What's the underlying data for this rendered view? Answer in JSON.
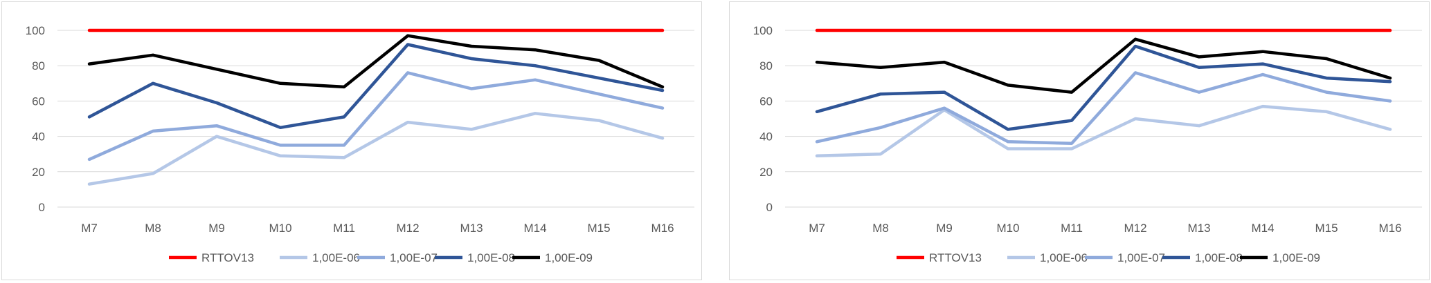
{
  "chart_data": [
    {
      "type": "line",
      "categories": [
        "M7",
        "M8",
        "M9",
        "M10",
        "M11",
        "M12",
        "M13",
        "M14",
        "M15",
        "M16"
      ],
      "ylim": [
        0,
        100
      ],
      "yticks": [
        0,
        20,
        40,
        60,
        80,
        100
      ],
      "grid": true,
      "legend_position": "bottom",
      "series": [
        {
          "name": "RTTOV13",
          "color": "#ff0000",
          "values": [
            100,
            100,
            100,
            100,
            100,
            100,
            100,
            100,
            100,
            100
          ]
        },
        {
          "name": "1,00E-06",
          "color": "#b4c7e7",
          "values": [
            13,
            19,
            40,
            29,
            28,
            48,
            44,
            53,
            49,
            39
          ]
        },
        {
          "name": "1,00E-07",
          "color": "#8faadc",
          "values": [
            27,
            43,
            46,
            35,
            35,
            76,
            67,
            72,
            64,
            56
          ]
        },
        {
          "name": "1,00E-08",
          "color": "#2f5597",
          "values": [
            51,
            70,
            59,
            45,
            51,
            92,
            84,
            80,
            73,
            66
          ]
        },
        {
          "name": "1,00E-09",
          "color": "#000000",
          "values": [
            81,
            86,
            78,
            70,
            68,
            97,
            91,
            89,
            83,
            68
          ]
        }
      ]
    },
    {
      "type": "line",
      "categories": [
        "M7",
        "M8",
        "M9",
        "M10",
        "M11",
        "M12",
        "M13",
        "M14",
        "M15",
        "M16"
      ],
      "ylim": [
        0,
        100
      ],
      "yticks": [
        0,
        20,
        40,
        60,
        80,
        100
      ],
      "grid": true,
      "legend_position": "bottom",
      "series": [
        {
          "name": "RTTOV13",
          "color": "#ff0000",
          "values": [
            100,
            100,
            100,
            100,
            100,
            100,
            100,
            100,
            100,
            100
          ]
        },
        {
          "name": "1,00E-06",
          "color": "#b4c7e7",
          "values": [
            29,
            30,
            55,
            33,
            33,
            50,
            46,
            57,
            54,
            44
          ]
        },
        {
          "name": "1,00E-07",
          "color": "#8faadc",
          "values": [
            37,
            45,
            56,
            37,
            36,
            76,
            65,
            75,
            65,
            60
          ]
        },
        {
          "name": "1,00E-08",
          "color": "#2f5597",
          "values": [
            54,
            64,
            65,
            44,
            49,
            91,
            79,
            81,
            73,
            71
          ]
        },
        {
          "name": "1,00E-09",
          "color": "#000000",
          "values": [
            82,
            79,
            82,
            69,
            65,
            95,
            85,
            88,
            84,
            73
          ]
        }
      ]
    }
  ]
}
